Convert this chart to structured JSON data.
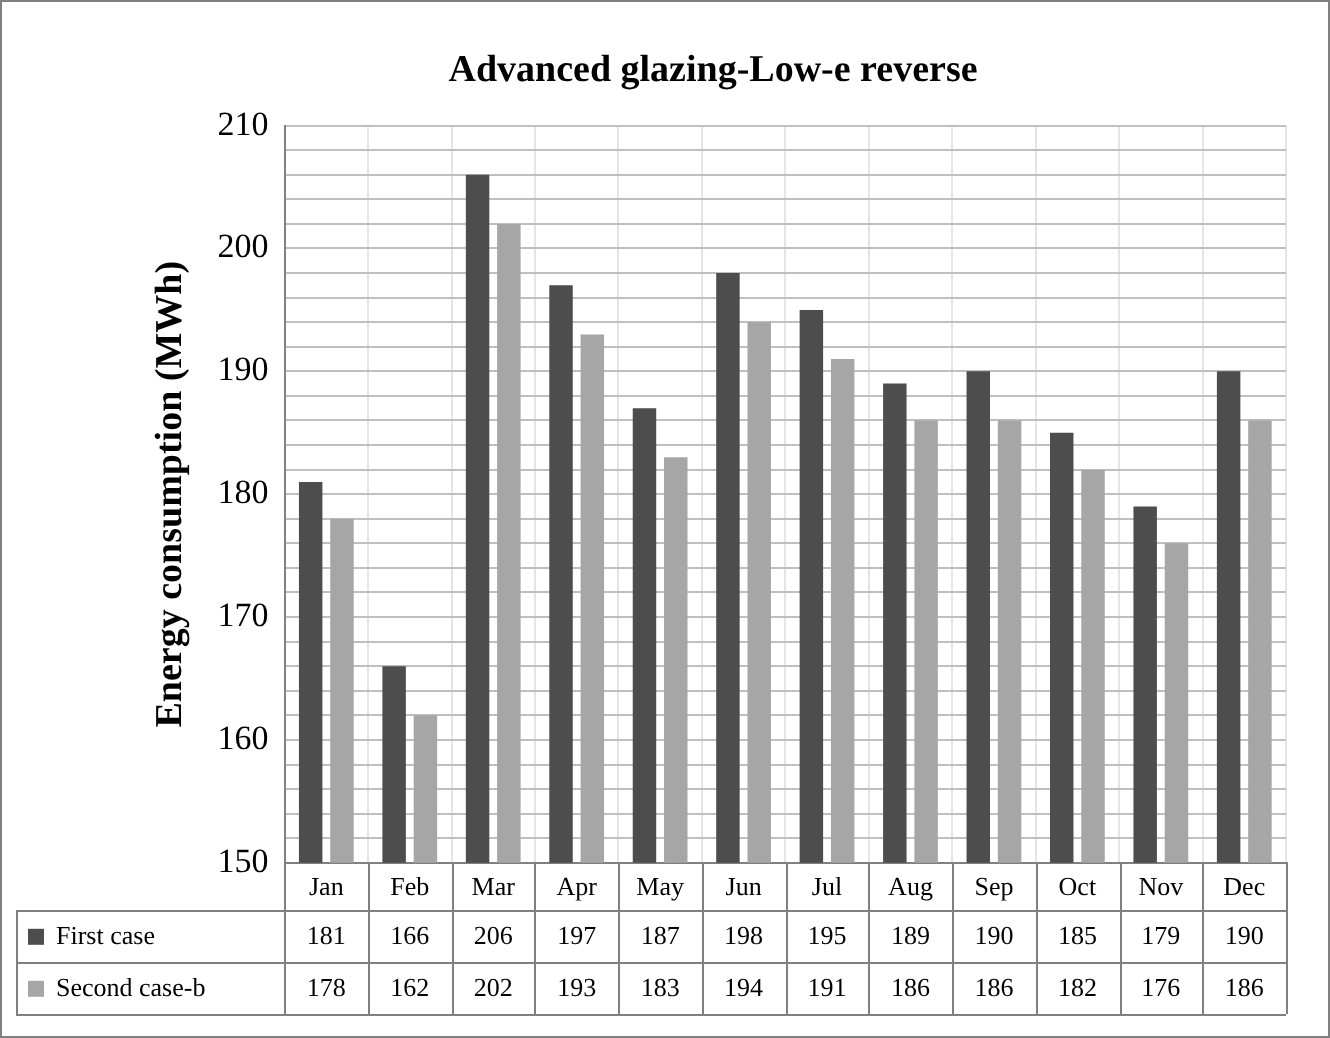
{
  "chart_data": {
    "type": "bar",
    "title": "Advanced glazing-Low-e reverse",
    "ylabel": "Energy consumption (MWh)",
    "categories": [
      "Jan",
      "Feb",
      "Mar",
      "Apr",
      "May",
      "Jun",
      "Jul",
      "Aug",
      "Sep",
      "Oct",
      "Nov",
      "Dec"
    ],
    "series": [
      {
        "name": "First case",
        "color": "#4d4d4d",
        "values": [
          181,
          166,
          206,
          197,
          187,
          198,
          195,
          189,
          190,
          185,
          179,
          190
        ]
      },
      {
        "name": "Second case-b",
        "color": "#a6a6a6",
        "values": [
          178,
          162,
          202,
          193,
          183,
          194,
          191,
          186,
          186,
          182,
          176,
          186
        ]
      }
    ],
    "ylim": [
      150,
      210
    ],
    "yticks": [
      150,
      {
        "value": 152,
        "label": null
      },
      {
        "value": 154,
        "label": null
      },
      {
        "value": 156,
        "label": null
      },
      {
        "value": 158,
        "label": null
      },
      160,
      {
        "value": 162,
        "label": null
      },
      {
        "value": 164,
        "label": null
      },
      {
        "value": 166,
        "label": null
      },
      {
        "value": 168,
        "label": null
      },
      170,
      {
        "value": 172,
        "label": null
      },
      {
        "value": 174,
        "label": null
      },
      {
        "value": 176,
        "label": null
      },
      {
        "value": 178,
        "label": null
      },
      180,
      {
        "value": 182,
        "label": null
      },
      {
        "value": 184,
        "label": null
      },
      {
        "value": 186,
        "label": null
      },
      {
        "value": 188,
        "label": null
      },
      190,
      {
        "value": 192,
        "label": null
      },
      {
        "value": 194,
        "label": null
      },
      {
        "value": 196,
        "label": null
      },
      {
        "value": 198,
        "label": null
      },
      200,
      {
        "value": 202,
        "label": null
      },
      {
        "value": 204,
        "label": null
      },
      {
        "value": 206,
        "label": null
      },
      {
        "value": 208,
        "label": null
      },
      210
    ],
    "grid": true,
    "legend": "bottom left",
    "data_labels": true
  }
}
